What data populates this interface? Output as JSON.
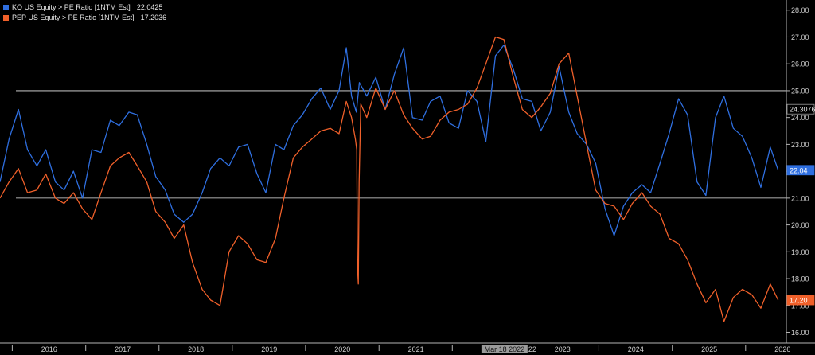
{
  "chart_data": {
    "type": "line",
    "title": "",
    "xlabel": "",
    "ylabel": "",
    "x_range": [
      "2015-05-01",
      "2026-01-20"
    ],
    "ylim": [
      15.6,
      28.2
    ],
    "y_ticks": [
      16,
      17,
      18,
      19,
      20,
      21,
      22,
      23,
      24,
      25,
      26,
      27,
      28
    ],
    "y_tick_labels": [
      "16.00",
      "17.00",
      "18.00",
      "19.00",
      "20.00",
      "21.00",
      "22.00",
      "23.00",
      "24.00",
      "25.00",
      "26.00",
      "27.00",
      "28.00"
    ],
    "x_tick_labels": [
      {
        "label": "2016",
        "date": "2016-01-01"
      },
      {
        "label": "2017",
        "date": "2017-01-01"
      },
      {
        "label": "2018",
        "date": "2018-01-01"
      },
      {
        "label": "2019",
        "date": "2019-01-01"
      },
      {
        "label": "2020",
        "date": "2020-01-01"
      },
      {
        "label": "2021",
        "date": "2021-01-01"
      },
      {
        "label": "2023",
        "date": "2023-01-01"
      },
      {
        "label": "2024",
        "date": "2024-01-01"
      },
      {
        "label": "2025",
        "date": "2025-01-01"
      },
      {
        "label": "2026",
        "date": "2026-01-01"
      }
    ],
    "x_minor_dates": [
      "2015-07-01",
      "2016-07-01",
      "2017-07-01",
      "2018-07-01",
      "2019-07-01",
      "2020-07-01",
      "2021-07-01",
      "2022-07-01",
      "2023-07-01",
      "2024-07-01",
      "2025-07-01"
    ],
    "crosshair": {
      "label": "Mar 18 2022",
      "date": "2022-03-18",
      "trailing_label": "22"
    },
    "reference_lines": [
      25,
      21
    ],
    "grid": false,
    "legend": "top-left",
    "colors": {
      "background": "#000000",
      "axis": "#b3b3b3",
      "ko": "#2f6fe0",
      "pep": "#f0602a",
      "ref_line": "#e8e8e8"
    },
    "markers": [
      {
        "label": "24.3076",
        "value": 24.31,
        "style": "outline"
      },
      {
        "label": "22.04",
        "value": 22.04,
        "style": "ko"
      },
      {
        "label": "17.20",
        "value": 17.2,
        "style": "pep"
      }
    ],
    "series": [
      {
        "name": "KO US Equity > PE Ratio [1NTM Est]",
        "last_value": "22.0425",
        "color": "#2f6fe0",
        "x": [
          "2015-05-01",
          "2015-06-15",
          "2015-08-01",
          "2015-09-15",
          "2015-11-01",
          "2015-12-15",
          "2016-02-01",
          "2016-03-15",
          "2016-05-01",
          "2016-06-15",
          "2016-08-01",
          "2016-09-15",
          "2016-11-01",
          "2016-12-15",
          "2017-02-01",
          "2017-03-15",
          "2017-05-01",
          "2017-06-15",
          "2017-08-01",
          "2017-09-15",
          "2017-11-01",
          "2017-12-15",
          "2018-02-01",
          "2018-03-15",
          "2018-05-01",
          "2018-06-15",
          "2018-08-01",
          "2018-09-15",
          "2018-11-01",
          "2018-12-15",
          "2019-02-01",
          "2019-03-15",
          "2019-05-01",
          "2019-06-15",
          "2019-08-01",
          "2019-09-15",
          "2019-11-01",
          "2019-12-15",
          "2020-01-20",
          "2020-02-15",
          "2020-03-10",
          "2020-03-25",
          "2020-05-01",
          "2020-06-15",
          "2020-08-01",
          "2020-09-15",
          "2020-11-01",
          "2020-12-15",
          "2021-02-01",
          "2021-03-15",
          "2021-05-01",
          "2021-06-15",
          "2021-08-01",
          "2021-09-15",
          "2021-11-01",
          "2021-12-15",
          "2022-02-01",
          "2022-03-15",
          "2022-05-01",
          "2022-06-15",
          "2022-08-01",
          "2022-09-15",
          "2022-11-01",
          "2022-12-15",
          "2023-02-01",
          "2023-03-15",
          "2023-05-01",
          "2023-06-15",
          "2023-08-01",
          "2023-09-15",
          "2023-11-01",
          "2023-12-15",
          "2024-02-01",
          "2024-03-15",
          "2024-05-01",
          "2024-06-15",
          "2024-08-01",
          "2024-09-15",
          "2024-11-01",
          "2024-12-15",
          "2025-02-01",
          "2025-03-15",
          "2025-05-01",
          "2025-06-15",
          "2025-08-01",
          "2025-09-15",
          "2025-11-01",
          "2025-12-10"
        ],
        "values": [
          21.6,
          23.2,
          24.3,
          22.8,
          22.2,
          22.8,
          21.6,
          21.3,
          22.0,
          21.0,
          22.8,
          22.7,
          23.9,
          23.7,
          24.2,
          24.1,
          23.0,
          21.8,
          21.3,
          20.4,
          20.1,
          20.4,
          21.2,
          22.1,
          22.5,
          22.2,
          22.9,
          23.0,
          21.9,
          21.2,
          23.0,
          22.8,
          23.7,
          24.1,
          24.7,
          25.1,
          24.3,
          25.0,
          26.6,
          24.8,
          24.2,
          25.3,
          24.8,
          25.5,
          24.3,
          25.6,
          26.6,
          24.0,
          23.9,
          24.6,
          24.8,
          23.8,
          23.6,
          25.0,
          24.6,
          23.1,
          26.3,
          26.7,
          25.8,
          24.7,
          24.6,
          23.5,
          24.2,
          25.9,
          24.2,
          23.4,
          23.0,
          22.3,
          20.6,
          19.6,
          20.7,
          21.2,
          21.5,
          21.2,
          22.3,
          23.4,
          24.7,
          24.1,
          21.6,
          21.1,
          24.0,
          24.8,
          23.6,
          23.3,
          22.5,
          21.4,
          22.9,
          22.04
        ]
      },
      {
        "name": "PEP US Equity > PE Ratio [1NTM Est]",
        "last_value": "17.2036",
        "color": "#f0602a",
        "x": [
          "2015-05-01",
          "2015-06-15",
          "2015-08-01",
          "2015-09-15",
          "2015-11-01",
          "2015-12-15",
          "2016-02-01",
          "2016-03-15",
          "2016-05-01",
          "2016-06-15",
          "2016-08-01",
          "2016-09-15",
          "2016-11-01",
          "2016-12-15",
          "2017-02-01",
          "2017-03-15",
          "2017-05-01",
          "2017-06-15",
          "2017-08-01",
          "2017-09-15",
          "2017-11-01",
          "2017-12-15",
          "2018-02-01",
          "2018-03-15",
          "2018-05-01",
          "2018-06-15",
          "2018-08-01",
          "2018-09-15",
          "2018-11-01",
          "2018-12-15",
          "2019-02-01",
          "2019-03-15",
          "2019-05-01",
          "2019-06-15",
          "2019-08-01",
          "2019-09-15",
          "2019-11-01",
          "2019-12-15",
          "2020-01-20",
          "2020-02-15",
          "2020-03-05",
          "2020-03-12",
          "2020-03-16",
          "2020-03-20",
          "2020-03-24",
          "2020-04-01",
          "2020-05-01",
          "2020-06-15",
          "2020-08-01",
          "2020-09-15",
          "2020-11-01",
          "2020-12-15",
          "2021-02-01",
          "2021-03-15",
          "2021-05-01",
          "2021-06-15",
          "2021-08-01",
          "2021-09-15",
          "2021-11-01",
          "2021-12-15",
          "2022-02-01",
          "2022-03-15",
          "2022-05-01",
          "2022-06-15",
          "2022-08-01",
          "2022-09-15",
          "2022-11-01",
          "2022-12-15",
          "2023-02-01",
          "2023-03-15",
          "2023-05-01",
          "2023-06-15",
          "2023-08-01",
          "2023-09-15",
          "2023-11-01",
          "2023-12-15",
          "2024-02-01",
          "2024-03-15",
          "2024-05-01",
          "2024-06-15",
          "2024-08-01",
          "2024-09-15",
          "2024-11-01",
          "2024-12-15",
          "2025-02-01",
          "2025-03-15",
          "2025-05-01",
          "2025-06-15",
          "2025-08-01",
          "2025-09-15",
          "2025-11-01",
          "2025-12-10"
        ],
        "values": [
          21.0,
          21.6,
          22.1,
          21.2,
          21.3,
          21.9,
          21.0,
          20.8,
          21.2,
          20.6,
          20.2,
          21.2,
          22.2,
          22.5,
          22.7,
          22.2,
          21.6,
          20.5,
          20.1,
          19.5,
          20.0,
          18.6,
          17.6,
          17.2,
          17.0,
          19.0,
          19.6,
          19.3,
          18.7,
          18.6,
          19.5,
          21.0,
          22.5,
          22.9,
          23.2,
          23.5,
          23.6,
          23.4,
          24.6,
          24.0,
          23.2,
          22.8,
          18.4,
          17.8,
          21.6,
          24.5,
          24.0,
          25.1,
          24.3,
          25.0,
          24.1,
          23.6,
          23.2,
          23.3,
          23.9,
          24.2,
          24.3,
          24.5,
          25.1,
          26.0,
          27.0,
          26.9,
          25.5,
          24.3,
          24.0,
          24.4,
          24.9,
          26.0,
          26.4,
          24.8,
          23.0,
          21.3,
          20.8,
          20.7,
          20.2,
          20.8,
          21.2,
          20.7,
          20.4,
          19.5,
          19.3,
          18.7,
          17.8,
          17.1,
          17.6,
          16.4,
          17.3,
          17.6,
          17.4,
          16.9,
          17.8,
          17.2
        ]
      }
    ]
  }
}
